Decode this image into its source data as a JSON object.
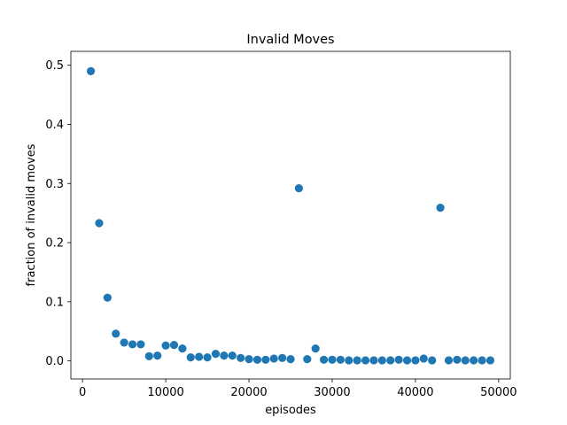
{
  "chart_data": {
    "type": "scatter",
    "title": "Invalid Moves",
    "xlabel": "episodes",
    "ylabel": "fraction of invalid moves",
    "xlim": [
      -1400,
      51400
    ],
    "ylim": [
      -0.0305,
      0.5235
    ],
    "xticks": [
      0,
      10000,
      20000,
      30000,
      40000,
      50000
    ],
    "xtick_labels": [
      "0",
      "10000",
      "20000",
      "30000",
      "40000",
      "50000"
    ],
    "yticks": [
      0.0,
      0.1,
      0.2,
      0.3,
      0.4,
      0.5
    ],
    "ytick_labels": [
      "0.0",
      "0.1",
      "0.2",
      "0.3",
      "0.4",
      "0.5"
    ],
    "grid": false,
    "color": "#1f77b4",
    "series": [
      {
        "x": [
          1000,
          2000,
          3000,
          4000,
          5000,
          6000,
          7000,
          8000,
          9000,
          10000,
          11000,
          12000,
          13000,
          14000,
          15000,
          16000,
          17000,
          18000,
          19000,
          20000,
          21000,
          22000,
          23000,
          24000,
          25000,
          26000,
          27000,
          28000,
          29000,
          30000,
          31000,
          32000,
          33000,
          34000,
          35000,
          36000,
          37000,
          38000,
          39000,
          40000,
          41000,
          42000,
          43000,
          44000,
          45000,
          46000,
          47000,
          48000,
          49000
        ],
        "y": [
          0.49,
          0.233,
          0.107,
          0.046,
          0.031,
          0.028,
          0.028,
          0.008,
          0.009,
          0.026,
          0.027,
          0.021,
          0.006,
          0.007,
          0.006,
          0.012,
          0.009,
          0.009,
          0.005,
          0.003,
          0.002,
          0.002,
          0.004,
          0.005,
          0.003,
          0.292,
          0.003,
          0.021,
          0.002,
          0.002,
          0.002,
          0.001,
          0.001,
          0.001,
          0.001,
          0.001,
          0.001,
          0.002,
          0.001,
          0.001,
          0.004,
          0.001,
          0.259,
          0.001,
          0.002,
          0.001,
          0.001,
          0.001,
          0.001
        ]
      }
    ]
  }
}
